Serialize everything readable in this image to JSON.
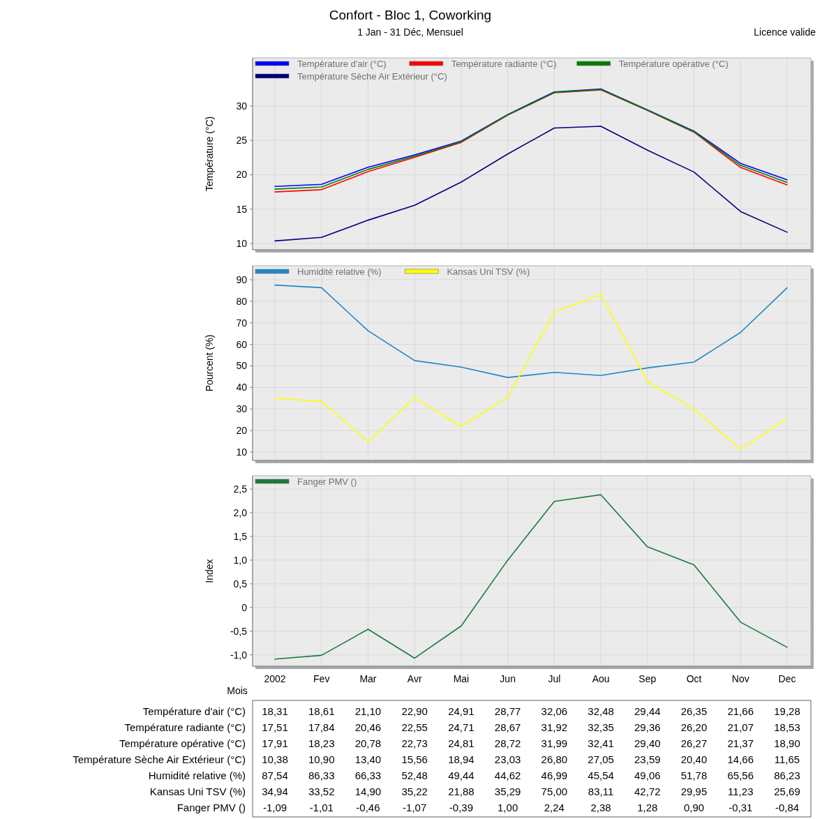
{
  "chart_data": [
    {
      "type": "line",
      "title": "Confort - Bloc 1, Coworking",
      "subtitle": "1 Jan - 31 Déc, Mensuel",
      "annotations": [
        "Licence valide"
      ],
      "ylabel": "Température (°C)",
      "categories": [
        null,
        null,
        null,
        null,
        null,
        null,
        null,
        null,
        null,
        null,
        null,
        null
      ],
      "ylim": [
        9.1,
        37
      ],
      "yticks": [
        10,
        15,
        20,
        25,
        30
      ],
      "grid": true,
      "legend": "top left",
      "tick_labels": "y",
      "marker": "none",
      "line_style": "solid",
      "series": [
        {
          "name": "Température d'air (°C)",
          "color": "#0000ff",
          "values": [
            18.31,
            18.61,
            21.1,
            22.9,
            24.91,
            28.77,
            32.06,
            32.48,
            29.44,
            26.35,
            21.66,
            19.28
          ],
          "value_labels": [
            "18,31",
            "18,61",
            "21,10",
            "22,90",
            "24,91",
            "28,77",
            "32,06",
            "32,48",
            "29,44",
            "26,35",
            "21,66",
            "19,28"
          ]
        },
        {
          "name": "Température radiante (°C)",
          "color": "#ff0000",
          "values": [
            17.51,
            17.84,
            20.46,
            22.55,
            24.71,
            28.67,
            31.92,
            32.35,
            29.36,
            26.2,
            21.07,
            18.53
          ],
          "value_labels": [
            "17,51",
            "17,84",
            "20,46",
            "22,55",
            "24,71",
            "28,67",
            "31,92",
            "32,35",
            "29,36",
            "26,20",
            "21,07",
            "18,53"
          ]
        },
        {
          "name": "Température opérative (°C)",
          "color": "#008000",
          "values": [
            17.91,
            18.23,
            20.78,
            22.73,
            24.81,
            28.72,
            31.99,
            32.41,
            29.4,
            26.27,
            21.37,
            18.9
          ],
          "value_labels": [
            "17,91",
            "18,23",
            "20,78",
            "22,73",
            "24,81",
            "28,72",
            "31,99",
            "32,41",
            "29,40",
            "26,27",
            "21,37",
            "18,90"
          ]
        },
        {
          "name": "Température Sèche Air Extérieur (°C)",
          "color": "#000080",
          "values": [
            10.38,
            10.9,
            13.4,
            15.56,
            18.94,
            23.03,
            26.8,
            27.05,
            23.59,
            20.4,
            14.66,
            11.65
          ],
          "value_labels": [
            "10,38",
            "10,90",
            "13,40",
            "15,56",
            "18,94",
            "23,03",
            "26,80",
            "27,05",
            "23,59",
            "20,40",
            "14,66",
            "11,65"
          ]
        }
      ]
    },
    {
      "type": "line",
      "ylabel": "Pourcent (%)",
      "categories": [
        null,
        null,
        null,
        null,
        null,
        null,
        null,
        null,
        null,
        null,
        null,
        null
      ],
      "ylim": [
        6.1,
        96.5
      ],
      "yticks": [
        10,
        20,
        30,
        40,
        50,
        60,
        70,
        80,
        90
      ],
      "grid": true,
      "legend": "top left",
      "tick_labels": "y",
      "marker": "none",
      "line_style": "solid",
      "series": [
        {
          "name": "Humidité relative (%)",
          "color": "#1e88c8",
          "values": [
            87.54,
            86.33,
            66.33,
            52.48,
            49.44,
            44.62,
            46.99,
            45.54,
            49.06,
            51.78,
            65.56,
            86.23
          ],
          "value_labels": [
            "87,54",
            "86,33",
            "66,33",
            "52,48",
            "49,44",
            "44,62",
            "46,99",
            "45,54",
            "49,06",
            "51,78",
            "65,56",
            "86,23"
          ]
        },
        {
          "name": "Kansas Uni TSV (%)",
          "color": "#ffff00",
          "values": [
            34.94,
            33.52,
            14.9,
            35.22,
            21.88,
            35.29,
            75.0,
            83.11,
            42.72,
            29.95,
            11.23,
            25.69
          ],
          "value_labels": [
            "34,94",
            "33,52",
            "14,90",
            "35,22",
            "21,88",
            "35,29",
            "75,00",
            "83,11",
            "42,72",
            "29,95",
            "11,23",
            "25,69"
          ]
        }
      ]
    },
    {
      "type": "line",
      "ylabel": "Index",
      "xlabel": "Mois",
      "categories": [
        "2002",
        "Fev",
        "Mar",
        "Avr",
        "Mai",
        "Jun",
        "Jul",
        "Aou",
        "Sep",
        "Oct",
        "Nov",
        "Dec"
      ],
      "ylim": [
        -1.24,
        2.78
      ],
      "yticks": [
        {
          "value": -1,
          "label": "-1,0"
        },
        {
          "value": -0.5,
          "label": "-0,5"
        },
        0,
        {
          "value": 0.5,
          "label": "0,5"
        },
        {
          "value": 1,
          "label": "1,0"
        },
        {
          "value": 1.5,
          "label": "1,5"
        },
        {
          "value": 2,
          "label": "2,0"
        },
        {
          "value": 2.5,
          "label": "2,5"
        }
      ],
      "grid": true,
      "legend": "top left",
      "marker": "none",
      "line_style": "solid",
      "series": [
        {
          "name": "Fanger PMV ()",
          "color": "#1a7a3c",
          "values": [
            -1.09,
            -1.01,
            -0.46,
            -1.07,
            -0.39,
            1.0,
            2.24,
            2.38,
            1.28,
            0.9,
            -0.31,
            -0.84
          ],
          "value_labels": [
            "-1,09",
            "-1,01",
            "-0,46",
            "-1,07",
            "-0,39",
            "1,00",
            "2,24",
            "2,38",
            "1,28",
            "0,90",
            "-0,31",
            "-0,84"
          ]
        }
      ]
    }
  ]
}
